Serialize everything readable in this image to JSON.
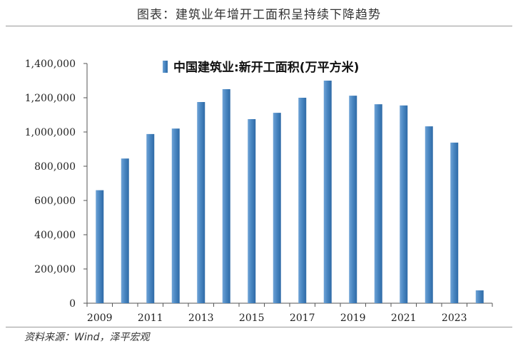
{
  "figure_title": "图表：建筑业年增开工面积呈持续下降趋势",
  "source_note": "资料来源：Wind，泽平宏观",
  "chart_data": {
    "type": "bar",
    "categories": [
      "2009",
      "2010",
      "2011",
      "2012",
      "2013",
      "2014",
      "2015",
      "2016",
      "2017",
      "2018",
      "2019",
      "2020",
      "2021",
      "2022",
      "2023",
      "2024"
    ],
    "series": [
      {
        "name": "中国建筑业:新开工面积(万平方米)",
        "values": [
          660000,
          845000,
          988000,
          1020000,
          1175000,
          1250000,
          1075000,
          1112000,
          1200000,
          1300000,
          1212000,
          1162000,
          1155000,
          1033000,
          938000,
          75000
        ]
      }
    ],
    "x_tick_labels": [
      "2009",
      "2011",
      "2013",
      "2015",
      "2017",
      "2019",
      "2021",
      "2023"
    ],
    "y_tick_labels": [
      "0",
      "200,000",
      "400,000",
      "600,000",
      "800,000",
      "1,000,000",
      "1,200,000",
      "1,400,000"
    ],
    "ylim": [
      0,
      1400000
    ],
    "ytick_step": 200000,
    "grid": false,
    "legend_position": "top-center",
    "bar_color": "#4A87C2"
  }
}
